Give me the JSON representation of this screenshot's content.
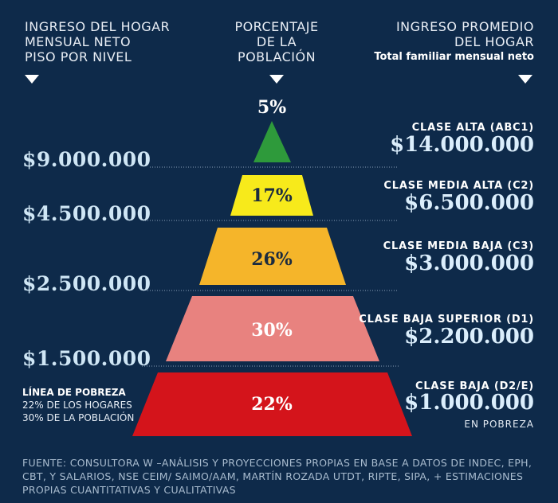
{
  "headers": {
    "left": [
      "INGRESO DEL HOGAR",
      "MENSUAL NETO",
      "PISO POR NIVEL"
    ],
    "middle": [
      "PORCENTAJE",
      "DE LA",
      "POBLACIÓN"
    ],
    "right": [
      "INGRESO PROMEDIO",
      "DEL HOGAR"
    ],
    "right_sub": "Total familiar mensual neto"
  },
  "thresholds": [
    "$9.000.000",
    "$4.500.000",
    "$2.500.000",
    "$1.500.000"
  ],
  "levels": [
    {
      "percent": "5%",
      "class_label": "CLASE ALTA (ABC1)",
      "avg_income": "$14.000.000",
      "color": "#2e9a3b",
      "text_color": "#ffffff"
    },
    {
      "percent": "17%",
      "class_label": "CLASE MEDIA ALTA (C2)",
      "avg_income": "$6.500.000",
      "color": "#f7ea1b",
      "text_color": "#1b2b3f"
    },
    {
      "percent": "26%",
      "class_label": "CLASE MEDIA BAJA (C3)",
      "avg_income": "$3.000.000",
      "color": "#f5b52a",
      "text_color": "#1b2b3f"
    },
    {
      "percent": "30%",
      "class_label": "CLASE BAJA SUPERIOR (D1)",
      "avg_income": "$2.200.000",
      "color": "#e8827f",
      "text_color": "#ffffff"
    },
    {
      "percent": "22%",
      "class_label": "CLASE BAJA (D2/E)",
      "avg_income": "$1.000.000",
      "color": "#d4141b",
      "text_color": "#ffffff"
    }
  ],
  "poverty": {
    "title": "LÍNEA DE POBREZA",
    "line1": "22% DE LOS HOGARES",
    "line2": "30% DE LA POBLACIÓN"
  },
  "en_pobreza": "EN POBREZA",
  "source": [
    "FUENTE: CONSULTORA W –ANÁLISIS Y PROYECCIONES PROPIAS EN BASE A DATOS DE INDEC, EPH,",
    "CBT, Y SALARIOS, NSE CEIM/ SAIMO/AAM, MARTÍN ROZADA UTDT, RIPTE, SIPA, + ESTIMACIONES",
    "PROPIAS CUANTITATIVAS Y CUALITATIVAS"
  ]
}
